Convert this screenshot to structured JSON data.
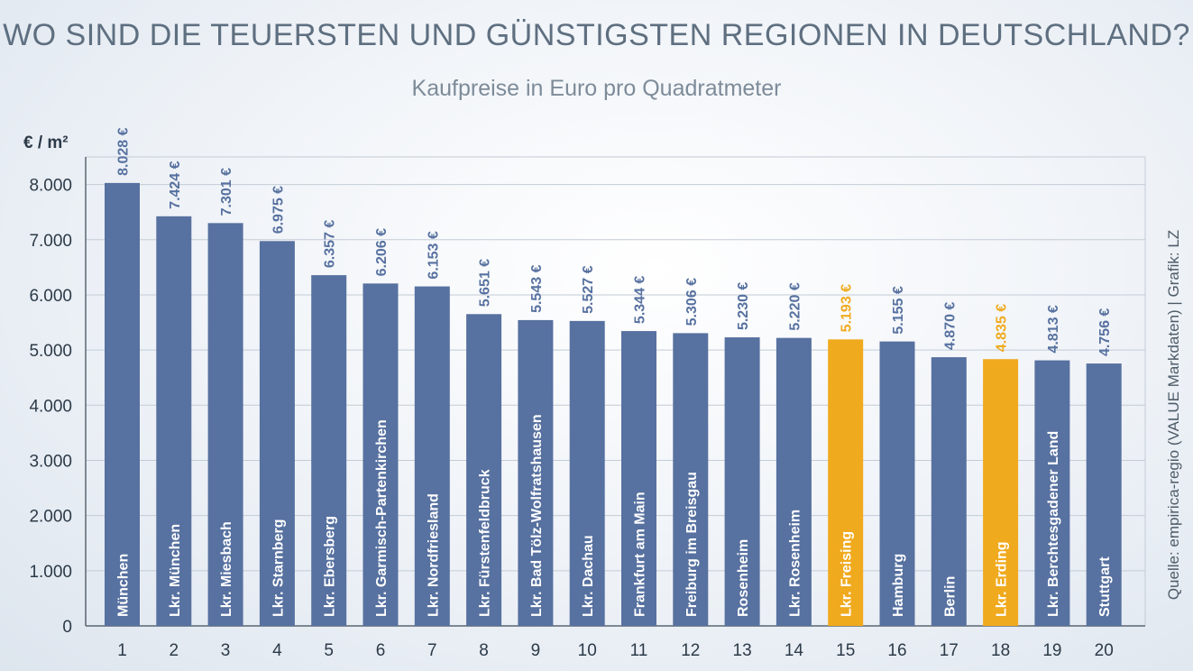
{
  "colors": {
    "bar": "#5771a0",
    "highlight": "#f0aa1e",
    "value_label": "#5771a0",
    "value_label_highlight": "#f0aa1e",
    "grid": "#c3ccd6",
    "axis": "#5a6672"
  },
  "chart_data": {
    "type": "bar",
    "title": "WO SIND DIE TEUERSTEN UND GÜNSTIGSTEN REGIONEN IN DEUTSCHLAND?",
    "subtitle": "Kaufpreise in Euro pro Quadratmeter",
    "ylabel": "€ / m²",
    "source": "Quelle: empirica-regio (VALUE Markdaten) | Grafik: LZ",
    "ylim": [
      0,
      8500
    ],
    "yticks": [
      0,
      1000,
      2000,
      3000,
      4000,
      5000,
      6000,
      7000,
      8000
    ],
    "ytick_labels": [
      "0",
      "1.000",
      "2.000",
      "3.000",
      "4.000",
      "5.000",
      "6.000",
      "7.000",
      "8.000"
    ],
    "grid": true,
    "categories": [
      "1",
      "2",
      "3",
      "4",
      "5",
      "6",
      "7",
      "8",
      "9",
      "10",
      "11",
      "12",
      "13",
      "14",
      "15",
      "16",
      "17",
      "18",
      "19",
      "20"
    ],
    "bar_names": [
      "München",
      "Lkr. München",
      "Lkr. Miesbach",
      "Lkr. Starnberg",
      "Lkr. Ebersberg",
      "Lkr. Garmisch-Partenkirchen",
      "Lkr. Nordfriesland",
      "Lkr. Fürstenfeldbruck",
      "Lkr. Bad Tölz-Wolfratshausen",
      "Lkr. Dachau",
      "Frankfurt am Main",
      "Freiburg im Breisgau",
      "Rosenheim",
      "Lkr. Rosenheim",
      "Lkr. Freising",
      "Hamburg",
      "Berlin",
      "Lkr. Erding",
      "Lkr. Berchtesgadener Land",
      "Stuttgart"
    ],
    "values": [
      8028,
      7424,
      7301,
      6975,
      6357,
      6206,
      6153,
      5651,
      5543,
      5527,
      5344,
      5306,
      5230,
      5220,
      5193,
      5155,
      4870,
      4835,
      4813,
      4756
    ],
    "value_labels": [
      "8.028 €",
      "7.424 €",
      "7.301 €",
      "6.975 €",
      "6.357 €",
      "6.206 €",
      "6.153 €",
      "5.651 €",
      "5.543 €",
      "5.527 €",
      "5.344 €",
      "5.306 €",
      "5.230 €",
      "5.220 €",
      "5.193 €",
      "5.155 €",
      "4.870 €",
      "4.835 €",
      "4.813 €",
      "4.756 €"
    ],
    "highlighted": [
      15,
      18
    ]
  }
}
